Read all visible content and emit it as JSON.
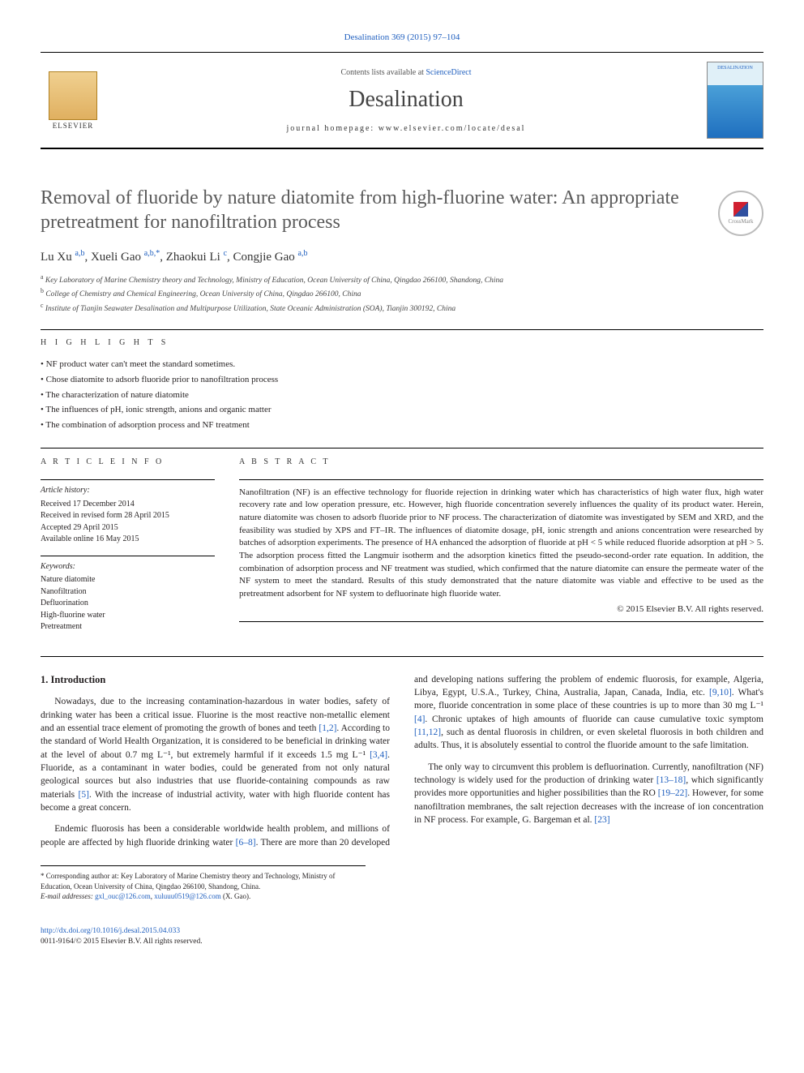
{
  "journal_ref": "Desalination 369 (2015) 97–104",
  "header": {
    "contents_prefix": "Contents lists available at ",
    "contents_link": "ScienceDirect",
    "journal_title": "Desalination",
    "homepage_label": "journal homepage: www.elsevier.com/locate/desal",
    "elsevier_text": "ELSEVIER",
    "cover_text": "DESALINATION"
  },
  "crossmark_label": "CrossMark",
  "article": {
    "title": "Removal of fluoride by nature diatomite from high-fluorine water: An appropriate pretreatment for nanofiltration process",
    "authors_html": "Lu Xu <sup>a,b</sup>, Xueli Gao <sup>a,b,*</sup>, Zhaokui Li <sup>c</sup>, Congjie Gao <sup>a,b</sup>",
    "affiliations": [
      {
        "sup": "a",
        "text": "Key Laboratory of Marine Chemistry theory and Technology, Ministry of Education, Ocean University of China, Qingdao 266100, Shandong, China"
      },
      {
        "sup": "b",
        "text": "College of Chemistry and Chemical Engineering, Ocean University of China, Qingdao 266100, China"
      },
      {
        "sup": "c",
        "text": "Institute of Tianjin Seawater Desalination and Multipurpose Utilization, State Oceanic Administration (SOA), Tianjin 300192, China"
      }
    ]
  },
  "highlights": {
    "label": "H I G H L I G H T S",
    "items": [
      "NF product water can't meet the standard sometimes.",
      "Chose diatomite to adsorb fluoride prior to nanofiltration process",
      "The characterization of nature diatomite",
      "The influences of pH, ionic strength, anions and organic matter",
      "The combination of adsorption process and NF treatment"
    ]
  },
  "article_info": {
    "label": "A R T I C L E   I N F O",
    "history_head": "Article history:",
    "history": [
      "Received 17 December 2014",
      "Received in revised form 28 April 2015",
      "Accepted 29 April 2015",
      "Available online 16 May 2015"
    ],
    "keywords_head": "Keywords:",
    "keywords": [
      "Nature diatomite",
      "Nanofiltration",
      "Defluorination",
      "High-fluorine water",
      "Pretreatment"
    ]
  },
  "abstract": {
    "label": "A B S T R A C T",
    "text": "Nanofiltration (NF) is an effective technology for fluoride rejection in drinking water which has characteristics of high water flux, high water recovery rate and low operation pressure, etc. However, high fluoride concentration severely influences the quality of its product water. Herein, nature diatomite was chosen to adsorb fluoride prior to NF process. The characterization of diatomite was investigated by SEM and XRD, and the feasibility was studied by XPS and FT–IR. The influences of diatomite dosage, pH, ionic strength and anions concentration were researched by batches of adsorption experiments. The presence of HA enhanced the adsorption of fluoride at pH < 5 while reduced fluoride adsorption at pH > 5. The adsorption process fitted the Langmuir isotherm and the adsorption kinetics fitted the pseudo-second-order rate equation. In addition, the combination of adsorption process and NF treatment was studied, which confirmed that the nature diatomite can ensure the permeate water of the NF system to meet the standard. Results of this study demonstrated that the nature diatomite was viable and effective to be used as the pretreatment adsorbent for NF system to defluorinate high fluoride water.",
    "copyright": "© 2015 Elsevier B.V. All rights reserved."
  },
  "body": {
    "section_title": "1. Introduction",
    "p1_a": "Nowadays, due to the increasing contamination-hazardous in water bodies, safety of drinking water has been a critical issue. Fluorine is the most reactive non-metallic element and an essential trace element of promoting the growth of bones and teeth ",
    "p1_r1": "[1,2]",
    "p1_b": ". According to the standard of World Health Organization, it is considered to be beneficial in drinking water at the level of about 0.7 mg L⁻¹, but extremely harmful if it exceeds 1.5 mg L⁻¹ ",
    "p1_r2": "[3,4]",
    "p1_c": ". Fluoride, as a contaminant in water bodies, could be generated from not only natural geological sources but also industries that use fluoride-containing compounds as raw materials ",
    "p1_r3": "[5]",
    "p1_d": ". With the increase of industrial activity, water with high fluoride content has become a great concern.",
    "p2_a": "Endemic fluorosis has been a considerable worldwide health problem, and millions of people are affected by high fluoride drinking water ",
    "p2_r1": "[6–8]",
    "p2_b": ". There are more than 20 developed and developing nations suffering the problem of endemic fluorosis, for example, Algeria, Libya, Egypt, U.S.A., Turkey, China, Australia, Japan, Canada, India, etc. ",
    "p2_r2": "[9,10]",
    "p2_c": ". What's more, fluoride concentration in some place of these countries is up to more than 30 mg L⁻¹ ",
    "p2_r3": "[4]",
    "p2_d": ". Chronic uptakes of high amounts of fluoride can cause cumulative toxic symptom ",
    "p2_r4": "[11,12]",
    "p2_e": ", such as dental fluorosis in children, or even skeletal fluorosis in both children and adults. Thus, it is absolutely essential to control the fluoride amount to the safe limitation.",
    "p3_a": "The only way to circumvent this problem is defluorination. Currently, nanofiltration (NF) technology is widely used for the production of drinking water ",
    "p3_r1": "[13–18]",
    "p3_b": ", which significantly provides more opportunities and higher possibilities than the RO ",
    "p3_r2": "[19–22]",
    "p3_c": ". However, for some nanofiltration membranes, the salt rejection decreases with the increase of ion concentration in NF process. For example, G. Bargeman et al. ",
    "p3_r3": "[23]"
  },
  "corr": {
    "star": "*",
    "text": "Corresponding author at: Key Laboratory of Marine Chemistry theory and Technology, Ministry of Education, Ocean University of China, Qingdao 266100, Shandong, China.",
    "email_label": "E-mail addresses: ",
    "email1": "gxl_ouc@126.com",
    "email_sep": ", ",
    "email2": "xuluuu0519@126.com",
    "email_suffix": " (X. Gao)."
  },
  "footer": {
    "doi": "http://dx.doi.org/10.1016/j.desal.2015.04.033",
    "issn_line": "0011-9164/© 2015 Elsevier B.V. All rights reserved."
  },
  "colors": {
    "link": "#1f5fbf",
    "text": "#231f20",
    "title_gray": "#5a5a5a"
  }
}
